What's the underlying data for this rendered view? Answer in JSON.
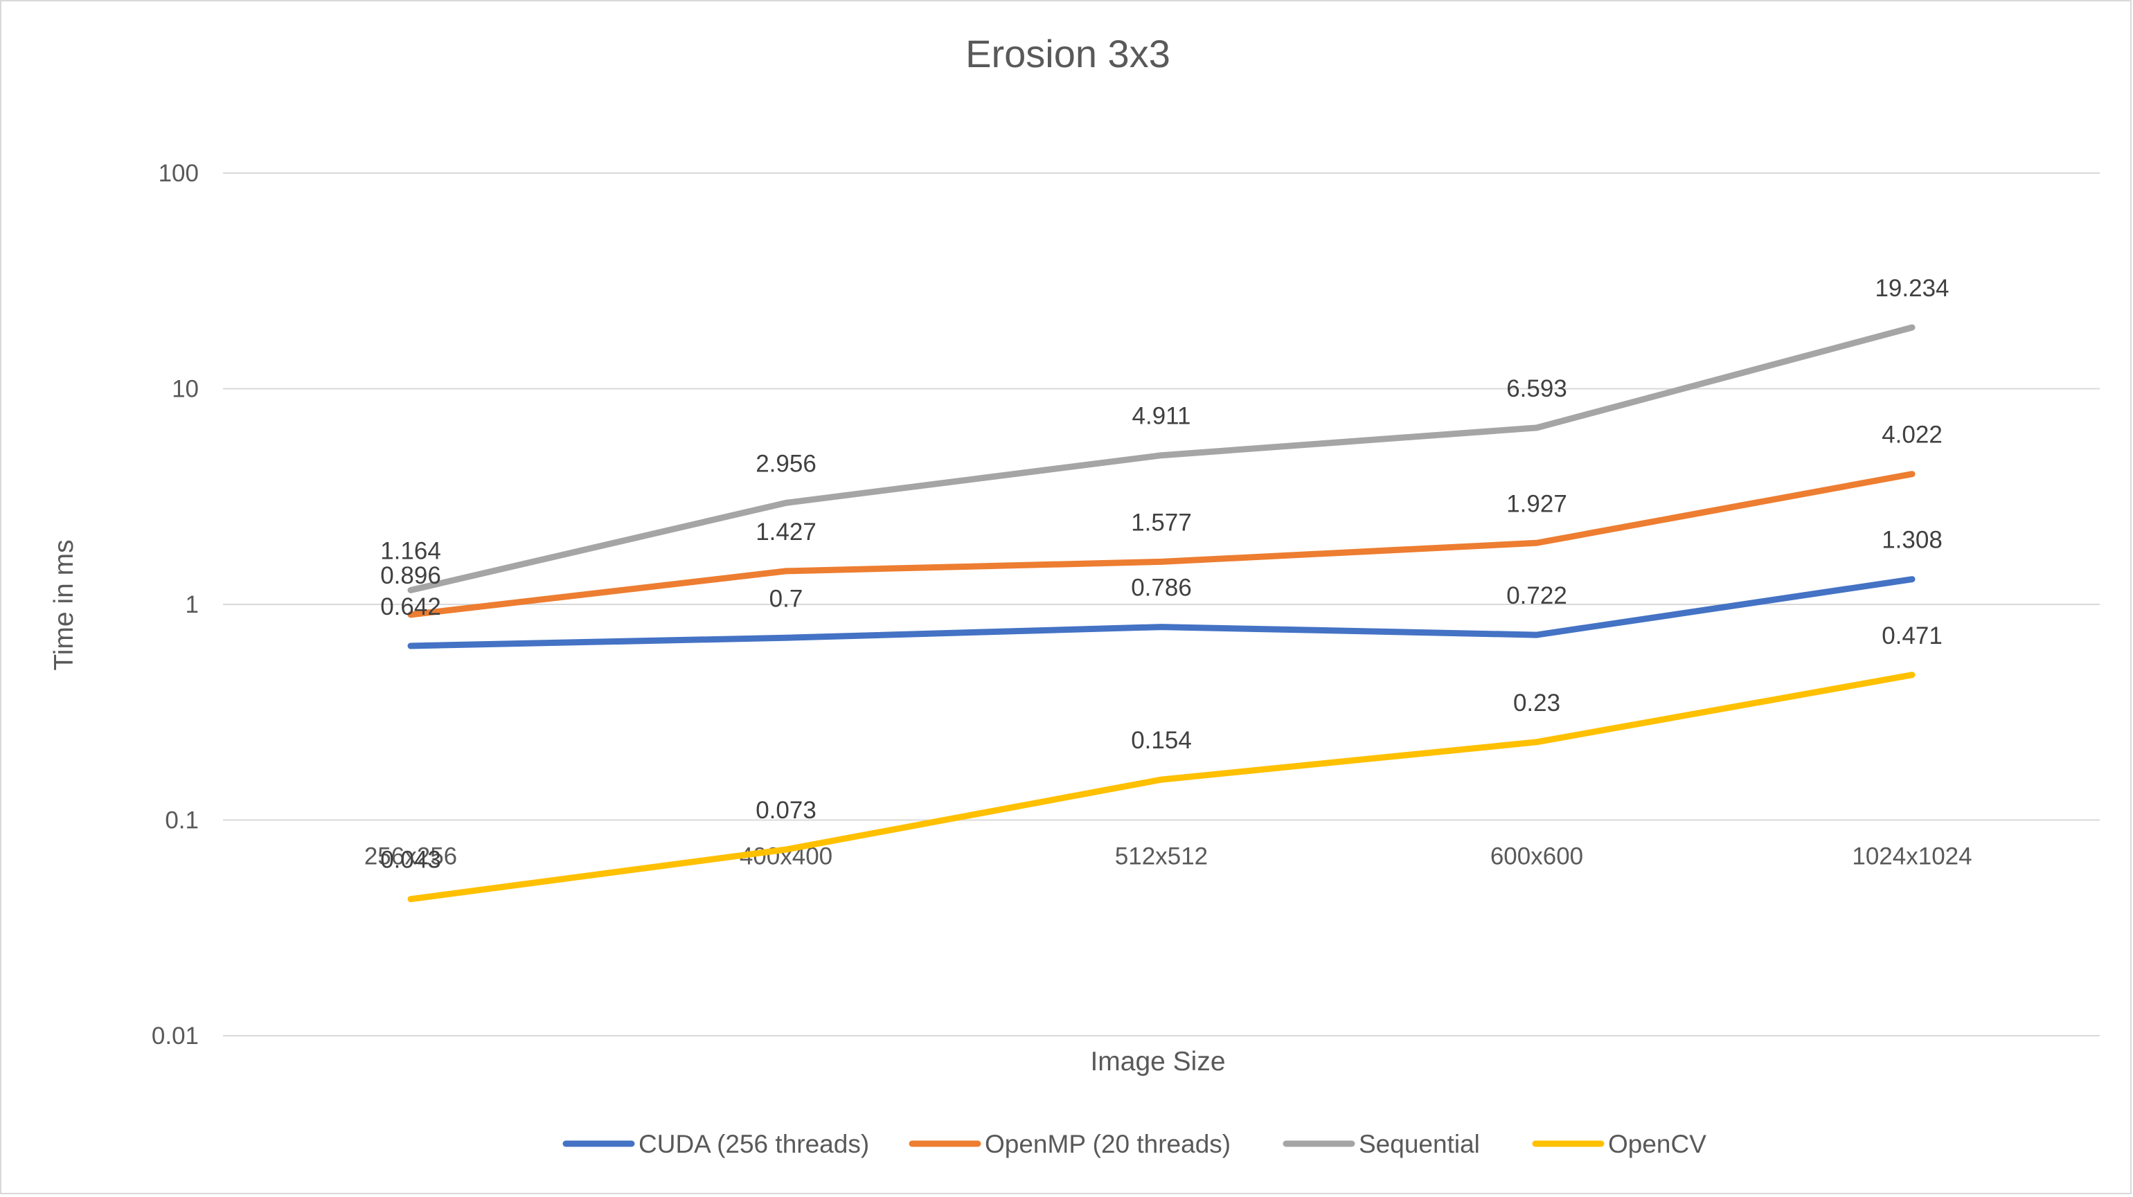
{
  "chart_data": {
    "type": "line",
    "title": "Erosion 3x3",
    "xlabel": "Image Size",
    "ylabel": "Time in ms",
    "y_scale": "log",
    "ylim": [
      0.01,
      100
    ],
    "y_ticks": [
      {
        "value": 100,
        "label": "100"
      },
      {
        "value": 10,
        "label": "10"
      },
      {
        "value": 1,
        "label": "1"
      },
      {
        "value": 0.1,
        "label": "0.1"
      },
      {
        "value": 0.01,
        "label": "0.01"
      }
    ],
    "categories": [
      "256x256",
      "400x400",
      "512x512",
      "600x600",
      "1024x1024"
    ],
    "grid": true,
    "legend_position": "bottom",
    "series": [
      {
        "name": "CUDA (256 threads)",
        "color": "#4472C4",
        "values": [
          0.642,
          0.7,
          0.786,
          0.722,
          1.308
        ],
        "labels": [
          "0.642",
          "0.7",
          "0.786",
          "0.722",
          "1.308"
        ]
      },
      {
        "name": "OpenMP (20 threads)",
        "color": "#ED7D31",
        "values": [
          0.896,
          1.427,
          1.577,
          1.927,
          4.022
        ],
        "labels": [
          "0.896",
          "1.427",
          "1.577",
          "1.927",
          "4.022"
        ]
      },
      {
        "name": "Sequential",
        "color": "#A5A5A5",
        "values": [
          1.164,
          2.956,
          4.911,
          6.593,
          19.234
        ],
        "labels": [
          "1.164",
          "2.956",
          "4.911",
          "6.593",
          "19.234"
        ]
      },
      {
        "name": "OpenCV",
        "color": "#FFC000",
        "values": [
          0.043,
          0.073,
          0.154,
          0.23,
          0.471
        ],
        "labels": [
          "0.043",
          "0.073",
          "0.154",
          "0.23",
          "0.471"
        ]
      }
    ]
  }
}
